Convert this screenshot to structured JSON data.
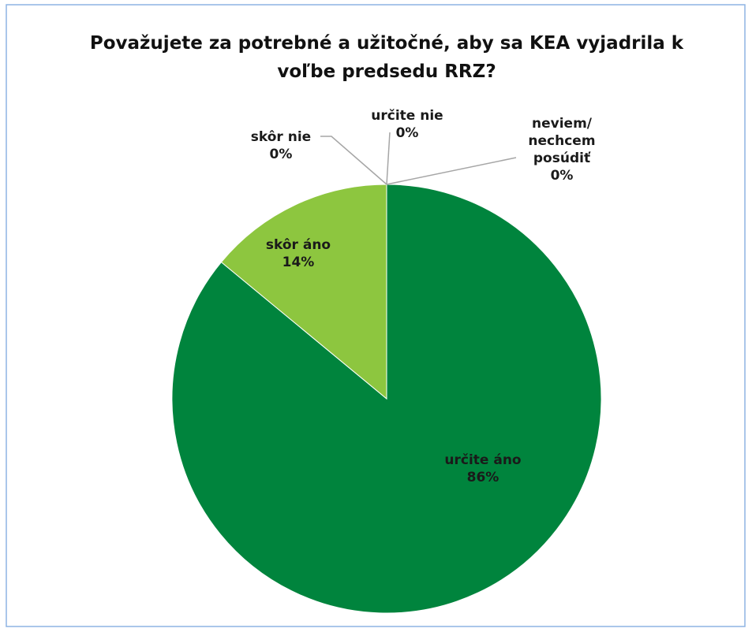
{
  "chart_data": {
    "type": "pie",
    "title": "Považujete za potrebné a užitočné, aby sa KEA vyjadrila k voľbe predsedu RRZ?",
    "categories": [
      "určite áno",
      "skôr áno",
      "skôr nie",
      "určite nie",
      "neviem/ nechcem posúdiť"
    ],
    "values": [
      86,
      14,
      0,
      0,
      0
    ],
    "value_labels": [
      "86%",
      "14%",
      "0%",
      "0%",
      "0%"
    ],
    "colors": [
      "#00843d",
      "#8dc63f",
      "#4f81bd",
      "#c0504d",
      "#9bbb59"
    ]
  }
}
